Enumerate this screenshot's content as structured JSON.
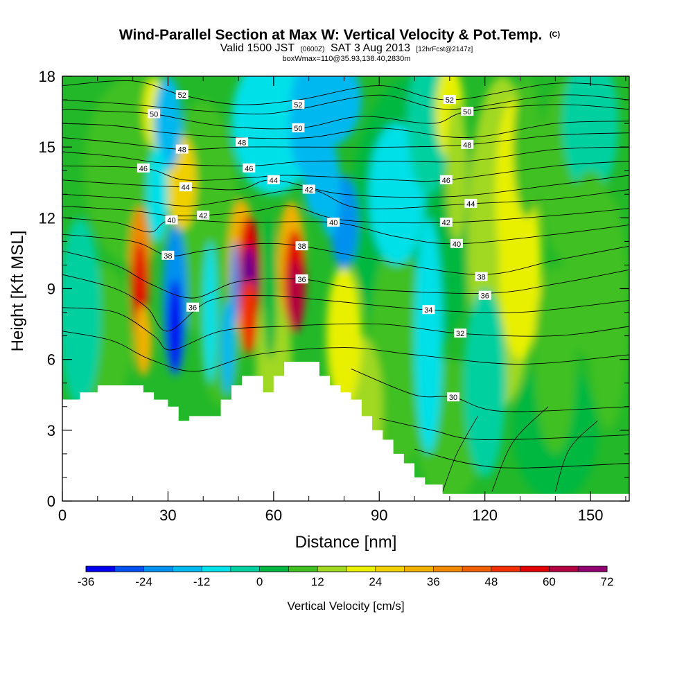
{
  "chart_data": {
    "type": "heatmap",
    "title": {
      "main": "Wind-Parallel Section at Max W: Vertical Velocity & Pot.Temp.",
      "copyright": "(C)",
      "line2_a": "Valid 1500 JST",
      "line2_b": "(0600Z)",
      "line2_c": "SAT 3 Aug 2013",
      "line2_d": "[12hrFcst@2147z]",
      "line3": "boxWmax=110@35.93,138.40,2830m"
    },
    "xlabel": "Distance [nm]",
    "ylabel": "Height [Kft MSL]",
    "xlim": [
      0,
      161
    ],
    "ylim": [
      0,
      18
    ],
    "x_ticks": [
      0,
      30,
      60,
      90,
      120,
      150
    ],
    "y_ticks": [
      0,
      3,
      6,
      9,
      12,
      15,
      18
    ],
    "colorbar": {
      "title": "Vertical Velocity [cm/s]",
      "levels": [
        -36,
        -30,
        -24,
        -18,
        -12,
        -6,
        0,
        6,
        12,
        18,
        24,
        30,
        36,
        42,
        48,
        54,
        60,
        66,
        72
      ],
      "tick_labels": [
        -36,
        -24,
        -12,
        0,
        12,
        24,
        36,
        48,
        60,
        72
      ],
      "colors": [
        "#0000f0",
        "#0050f0",
        "#0090f0",
        "#00b8f0",
        "#00e0e8",
        "#00d0a0",
        "#00b840",
        "#40c020",
        "#a0d820",
        "#e8f000",
        "#f0d000",
        "#f0b000",
        "#f08800",
        "#f06000",
        "#f03000",
        "#e00000",
        "#b00040",
        "#900070",
        "#600090"
      ]
    },
    "terrain_kft": [
      [
        0,
        4.3
      ],
      [
        5,
        4.6
      ],
      [
        10,
        4.9
      ],
      [
        15,
        4.9
      ],
      [
        20,
        4.9
      ],
      [
        23,
        4.6
      ],
      [
        26,
        4.3
      ],
      [
        30,
        4.0
      ],
      [
        33,
        3.4
      ],
      [
        36,
        3.6
      ],
      [
        42,
        3.6
      ],
      [
        45,
        4.3
      ],
      [
        48,
        4.9
      ],
      [
        51,
        5.3
      ],
      [
        55,
        5.3
      ],
      [
        57,
        4.6
      ],
      [
        60,
        5.3
      ],
      [
        63,
        5.9
      ],
      [
        70,
        5.9
      ],
      [
        73,
        5.3
      ],
      [
        76,
        4.9
      ],
      [
        79,
        4.6
      ],
      [
        82,
        4.3
      ],
      [
        85,
        3.6
      ],
      [
        88,
        3.0
      ],
      [
        91,
        2.6
      ],
      [
        94,
        2.0
      ],
      [
        97,
        1.6
      ],
      [
        100,
        1.0
      ],
      [
        103,
        0.7
      ],
      [
        108,
        0.3
      ],
      [
        161,
        0.3
      ]
    ],
    "updraft_maxima": [
      {
        "x": 22,
        "y": 8.8,
        "w_cms": 56
      },
      {
        "x": 53,
        "y": 9.0,
        "w_cms": 72
      },
      {
        "x": 66,
        "y": 9.0,
        "w_cms": 60
      }
    ],
    "downdraft_minima": [
      {
        "x": 32,
        "y": 7.6,
        "w_cms": -30
      },
      {
        "x": 76,
        "y": 13.5,
        "w_cms": -24
      }
    ],
    "contour_labels": [
      {
        "text": "52",
        "x": 34,
        "y": 17.2
      },
      {
        "text": "52",
        "x": 67,
        "y": 16.8
      },
      {
        "text": "52",
        "x": 110,
        "y": 17.0
      },
      {
        "text": "50",
        "x": 26,
        "y": 16.4
      },
      {
        "text": "50",
        "x": 67,
        "y": 15.8
      },
      {
        "text": "50",
        "x": 115,
        "y": 16.5
      },
      {
        "text": "48",
        "x": 34,
        "y": 14.9
      },
      {
        "text": "48",
        "x": 51,
        "y": 15.2
      },
      {
        "text": "48",
        "x": 115,
        "y": 15.1
      },
      {
        "text": "46",
        "x": 23,
        "y": 14.1
      },
      {
        "text": "46",
        "x": 53,
        "y": 14.1
      },
      {
        "text": "46",
        "x": 109,
        "y": 13.6
      },
      {
        "text": "44",
        "x": 35,
        "y": 13.3
      },
      {
        "text": "44",
        "x": 60,
        "y": 13.6
      },
      {
        "text": "44",
        "x": 116,
        "y": 12.6
      },
      {
        "text": "42",
        "x": 40,
        "y": 12.1
      },
      {
        "text": "42",
        "x": 70,
        "y": 13.2
      },
      {
        "text": "42",
        "x": 109,
        "y": 11.8
      },
      {
        "text": "40",
        "x": 31,
        "y": 11.9
      },
      {
        "text": "40",
        "x": 77,
        "y": 11.8
      },
      {
        "text": "40",
        "x": 112,
        "y": 10.9
      },
      {
        "text": "38",
        "x": 30,
        "y": 10.4
      },
      {
        "text": "38",
        "x": 68,
        "y": 10.8
      },
      {
        "text": "38",
        "x": 119,
        "y": 9.5
      },
      {
        "text": "36",
        "x": 37,
        "y": 8.2
      },
      {
        "text": "36",
        "x": 68,
        "y": 9.4
      },
      {
        "text": "36",
        "x": 120,
        "y": 8.7
      },
      {
        "text": "34",
        "x": 104,
        "y": 8.1
      },
      {
        "text": "32",
        "x": 113,
        "y": 7.1
      },
      {
        "text": "30",
        "x": 111,
        "y": 4.4
      }
    ]
  }
}
